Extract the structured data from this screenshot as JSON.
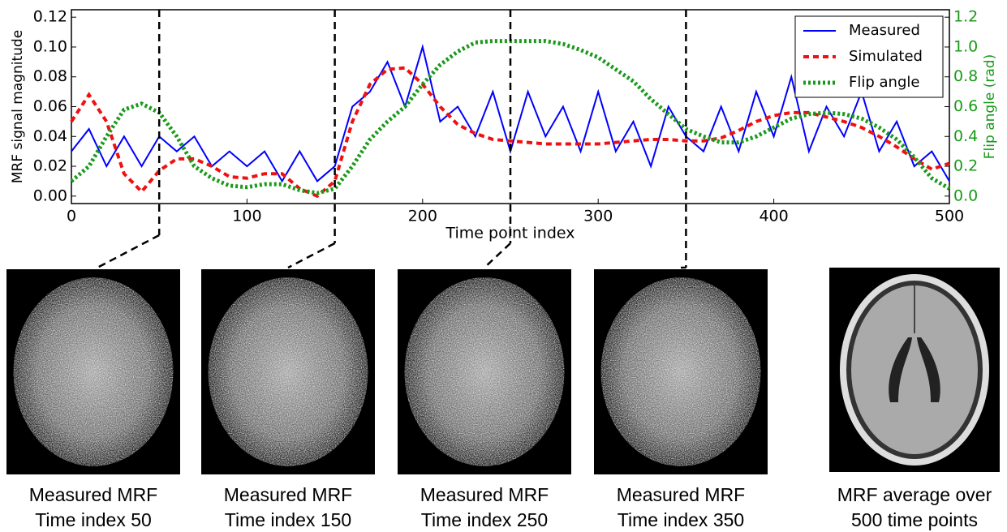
{
  "chart_data": {
    "type": "line",
    "xlabel": "Time point index",
    "ylabel": "MRF signal magnitude",
    "y2label": "Flip angle (rad)",
    "x": [
      0,
      10,
      20,
      30,
      40,
      50,
      60,
      70,
      80,
      90,
      100,
      110,
      120,
      130,
      140,
      150,
      160,
      170,
      180,
      190,
      200,
      210,
      220,
      230,
      240,
      250,
      260,
      270,
      280,
      290,
      300,
      310,
      320,
      330,
      340,
      350,
      360,
      370,
      380,
      390,
      400,
      410,
      420,
      430,
      440,
      450,
      460,
      470,
      480,
      490,
      500
    ],
    "series": [
      {
        "name": "Measured",
        "color": "#0000ff",
        "style": "solid",
        "values": [
          0.03,
          0.045,
          0.02,
          0.04,
          0.02,
          0.04,
          0.03,
          0.04,
          0.02,
          0.03,
          0.02,
          0.03,
          0.01,
          0.03,
          0.01,
          0.02,
          0.06,
          0.07,
          0.09,
          0.06,
          0.1,
          0.05,
          0.06,
          0.04,
          0.07,
          0.03,
          0.07,
          0.04,
          0.06,
          0.03,
          0.07,
          0.03,
          0.05,
          0.02,
          0.06,
          0.04,
          0.03,
          0.06,
          0.03,
          0.07,
          0.04,
          0.08,
          0.03,
          0.06,
          0.04,
          0.07,
          0.03,
          0.05,
          0.02,
          0.03,
          0.01
        ]
      },
      {
        "name": "Simulated",
        "color": "#ee1111",
        "style": "dashed",
        "values": [
          0.05,
          0.068,
          0.05,
          0.015,
          0.003,
          0.017,
          0.025,
          0.025,
          0.02,
          0.013,
          0.012,
          0.015,
          0.015,
          0.005,
          0.0,
          0.01,
          0.05,
          0.075,
          0.085,
          0.086,
          0.075,
          0.06,
          0.048,
          0.042,
          0.038,
          0.037,
          0.036,
          0.035,
          0.035,
          0.035,
          0.035,
          0.036,
          0.037,
          0.038,
          0.038,
          0.037,
          0.037,
          0.039,
          0.044,
          0.05,
          0.054,
          0.056,
          0.056,
          0.053,
          0.05,
          0.046,
          0.04,
          0.033,
          0.025,
          0.018,
          0.022
        ]
      },
      {
        "name": "Flip angle",
        "color": "#1a9a1a",
        "style": "dotted",
        "axis": "y2",
        "values": [
          0.1,
          0.2,
          0.4,
          0.58,
          0.62,
          0.56,
          0.4,
          0.2,
          0.12,
          0.07,
          0.06,
          0.08,
          0.08,
          0.04,
          0.02,
          0.05,
          0.2,
          0.38,
          0.5,
          0.6,
          0.75,
          0.88,
          0.97,
          1.03,
          1.04,
          1.04,
          1.04,
          1.04,
          1.02,
          0.98,
          0.93,
          0.85,
          0.77,
          0.65,
          0.55,
          0.45,
          0.4,
          0.36,
          0.36,
          0.4,
          0.46,
          0.52,
          0.55,
          0.56,
          0.55,
          0.52,
          0.46,
          0.38,
          0.26,
          0.12,
          0.05
        ]
      }
    ],
    "xlim": [
      0,
      500
    ],
    "xticks": [
      0,
      100,
      200,
      300,
      400,
      500
    ],
    "ylim": [
      -0.005,
      0.125
    ],
    "yticks": [
      {
        "value": 0,
        "label": "0.00"
      },
      {
        "value": 0.02,
        "label": "0.02"
      },
      {
        "value": 0.04,
        "label": "0.04"
      },
      {
        "value": 0.06,
        "label": "0.06"
      },
      {
        "value": 0.08,
        "label": "0.08"
      },
      {
        "value": 0.1,
        "label": "0.10"
      },
      {
        "value": 0.12,
        "label": "0.12"
      }
    ],
    "y2lim": [
      -0.05,
      1.25
    ],
    "y2ticks": [
      {
        "value": 0,
        "label": "0.0"
      },
      {
        "value": 0.2,
        "label": "0.2"
      },
      {
        "value": 0.4,
        "label": "0.4"
      },
      {
        "value": 0.6,
        "label": "0.6"
      },
      {
        "value": 0.8,
        "label": "0.8"
      },
      {
        "value": 1.0,
        "label": "1.0"
      },
      {
        "value": 1.2,
        "label": "1.2"
      }
    ],
    "y2color": "#1a9a1a",
    "vlines": [
      50,
      150,
      250,
      350
    ],
    "legend": "upper right",
    "grid": false
  },
  "panels": [
    {
      "caption": [
        "Measured MRF",
        "Time index 50"
      ]
    },
    {
      "caption": [
        "Measured MRF",
        "Time index 150"
      ]
    },
    {
      "caption": [
        "Measured MRF",
        "Time index 250"
      ]
    },
    {
      "caption": [
        "Measured MRF",
        "Time index 350"
      ]
    },
    {
      "caption": [
        "MRF average over",
        "500 time points"
      ]
    }
  ]
}
